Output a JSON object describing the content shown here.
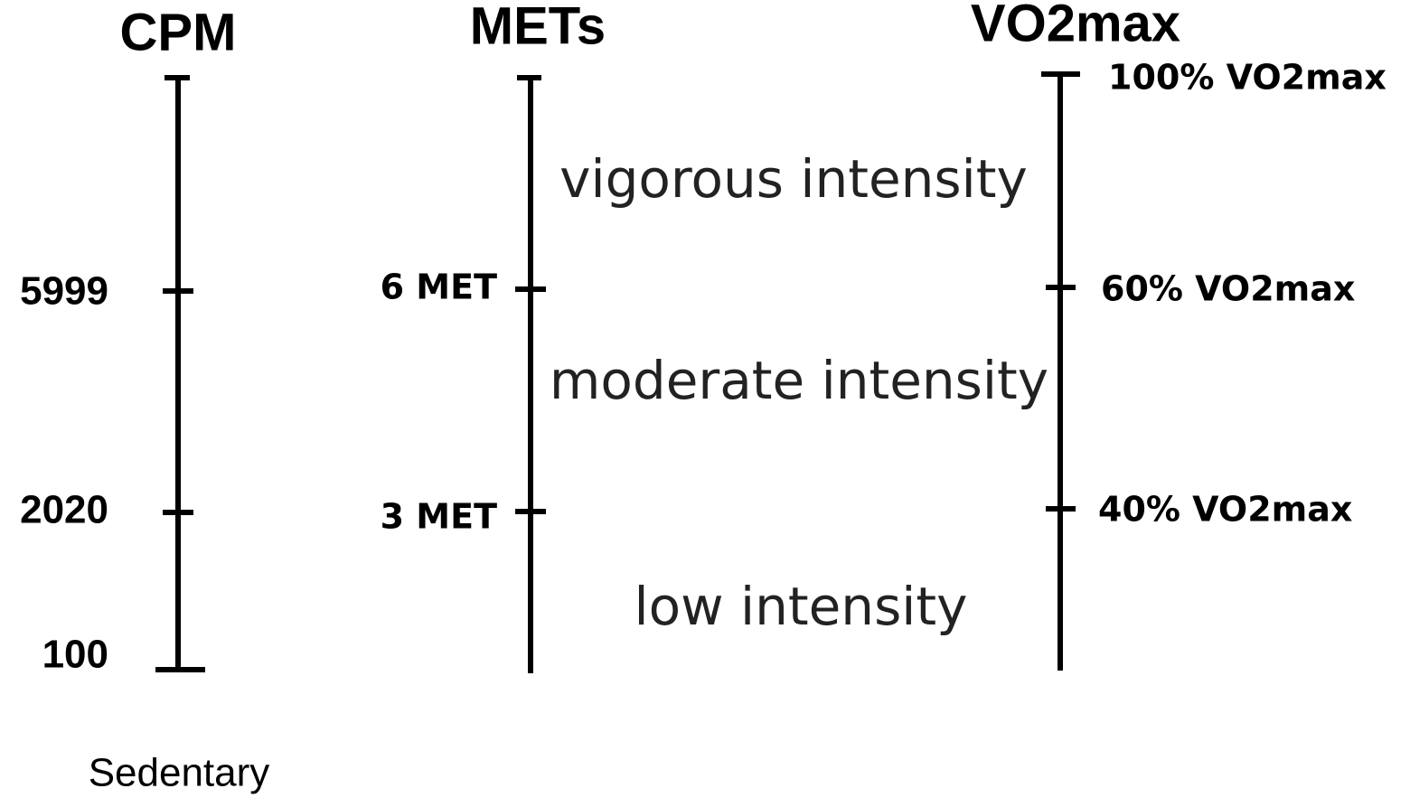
{
  "scales": [
    {
      "title": "CPM",
      "ticks": [
        "5999",
        "2020",
        "100"
      ]
    },
    {
      "title": "METs",
      "ticks": [
        "6 MET",
        "3 MET"
      ]
    },
    {
      "title": "VO2max",
      "ticks": [
        "100% VO2max",
        "60% VO2max",
        "40% VO2max"
      ]
    }
  ],
  "zones": [
    "vigorous intensity",
    "moderate intensity",
    "low intensity"
  ],
  "footer": "Sedentary"
}
